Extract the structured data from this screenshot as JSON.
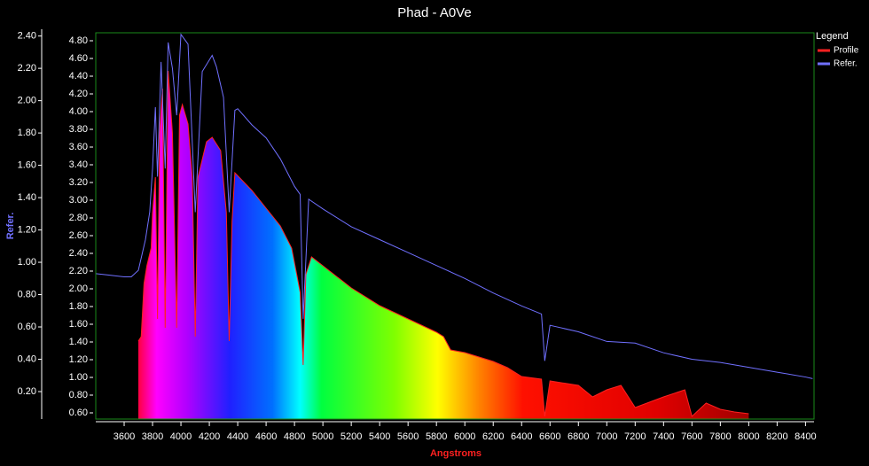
{
  "chart_data": {
    "type": "line",
    "title": "Phad - A0Ve",
    "xlabel": "Angstroms",
    "ylabel": "Refer.",
    "legend_title": "Legend",
    "legend": "top-right",
    "xlim": [
      3400,
      8460
    ],
    "ylim": [
      0.03,
      2.42
    ],
    "y2lim": [
      0.53,
      4.89
    ],
    "xticks": [
      3600,
      3800,
      4000,
      4200,
      4400,
      4600,
      4800,
      5000,
      5200,
      5400,
      5600,
      5800,
      6000,
      6200,
      6400,
      6600,
      6800,
      7000,
      7200,
      7400,
      7600,
      7800,
      8000,
      8200,
      8400
    ],
    "yticks": [
      {
        "value": 0.2,
        "label": "0.20"
      },
      {
        "value": 0.4,
        "label": "0.40"
      },
      {
        "value": 0.6,
        "label": "0.60"
      },
      {
        "value": 0.8,
        "label": "0.80"
      },
      {
        "value": 1.0,
        "label": "1.00"
      },
      {
        "value": 1.2,
        "label": "1.20"
      },
      {
        "value": 1.4,
        "label": "1.40"
      },
      {
        "value": 1.6,
        "label": "1.60"
      },
      {
        "value": 1.8,
        "label": "1.80"
      },
      {
        "value": 2.0,
        "label": "2.00"
      },
      {
        "value": 2.2,
        "label": "2.20"
      },
      {
        "value": 2.4,
        "label": "2.40"
      }
    ],
    "y2ticks": [
      {
        "value": 0.6,
        "label": "0.60"
      },
      {
        "value": 0.8,
        "label": "0.80"
      },
      {
        "value": 1.0,
        "label": "1.00"
      },
      {
        "value": 1.2,
        "label": "1.20"
      },
      {
        "value": 1.4,
        "label": "1.40"
      },
      {
        "value": 1.6,
        "label": "1.60"
      },
      {
        "value": 1.8,
        "label": "1.80"
      },
      {
        "value": 2.0,
        "label": "2.00"
      },
      {
        "value": 2.2,
        "label": "2.20"
      },
      {
        "value": 2.4,
        "label": "2.40"
      },
      {
        "value": 2.6,
        "label": "2.60"
      },
      {
        "value": 2.8,
        "label": "2.80"
      },
      {
        "value": 3.0,
        "label": "3.00"
      },
      {
        "value": 3.2,
        "label": "3.20"
      },
      {
        "value": 3.4,
        "label": "3.40"
      },
      {
        "value": 3.6,
        "label": "3.60"
      },
      {
        "value": 3.8,
        "label": "3.80"
      },
      {
        "value": 4.0,
        "label": "4.00"
      },
      {
        "value": 4.2,
        "label": "4.20"
      },
      {
        "value": 4.4,
        "label": "4.40"
      },
      {
        "value": 4.6,
        "label": "4.60"
      },
      {
        "value": 4.8,
        "label": "4.80"
      }
    ],
    "series": [
      {
        "name": "Profile",
        "color": "#ff2020",
        "axis": "y2",
        "x": [
          3700,
          3720,
          3740,
          3760,
          3790,
          3800,
          3820,
          3835,
          3850,
          3870,
          3889,
          3910,
          3940,
          3970,
          3990,
          4010,
          4050,
          4080,
          4101,
          4120,
          4180,
          4220,
          4280,
          4320,
          4340,
          4360,
          4380,
          4500,
          4600,
          4700,
          4780,
          4840,
          4861,
          4880,
          4920,
          5000,
          5200,
          5400,
          5600,
          5800,
          5850,
          5900,
          6000,
          6200,
          6300,
          6400,
          6540,
          6563,
          6600,
          6800,
          6900,
          7000,
          7100,
          7200,
          7400,
          7550,
          7600,
          7700,
          7800,
          7900,
          8000
        ],
        "values": [
          1.41,
          1.46,
          2.06,
          2.26,
          2.46,
          2.86,
          3.26,
          1.66,
          3.76,
          4.26,
          1.56,
          4.46,
          3.76,
          1.56,
          3.96,
          4.08,
          3.86,
          3.26,
          1.46,
          3.26,
          3.66,
          3.71,
          3.56,
          2.86,
          1.41,
          2.76,
          3.31,
          3.11,
          2.91,
          2.71,
          2.46,
          1.96,
          1.14,
          2.16,
          2.36,
          2.26,
          2.01,
          1.81,
          1.66,
          1.51,
          1.46,
          1.31,
          1.28,
          1.18,
          1.11,
          1.01,
          0.98,
          0.56,
          0.96,
          0.91,
          0.78,
          0.86,
          0.91,
          0.66,
          0.78,
          0.86,
          0.56,
          0.71,
          0.64,
          0.61,
          0.59
        ]
      },
      {
        "name": "Refer.",
        "color": "#7070ff",
        "axis": "y",
        "x": [
          3400,
          3500,
          3600,
          3650,
          3700,
          3750,
          3780,
          3800,
          3820,
          3835,
          3860,
          3889,
          3910,
          3940,
          3970,
          4000,
          4050,
          4101,
          4150,
          4220,
          4250,
          4300,
          4340,
          4380,
          4400,
          4500,
          4600,
          4700,
          4800,
          4840,
          4861,
          4900,
          5000,
          5200,
          5400,
          5600,
          5800,
          6000,
          6200,
          6400,
          6540,
          6563,
          6600,
          6800,
          7000,
          7200,
          7400,
          7600,
          7800,
          8000,
          8200,
          8400,
          8450
        ],
        "values": [
          0.93,
          0.92,
          0.91,
          0.91,
          0.95,
          1.14,
          1.31,
          1.58,
          1.96,
          1.53,
          2.24,
          1.58,
          2.36,
          2.2,
          1.91,
          2.41,
          2.35,
          1.31,
          2.18,
          2.28,
          2.21,
          2.02,
          1.31,
          1.94,
          1.95,
          1.85,
          1.77,
          1.64,
          1.47,
          1.42,
          0.65,
          1.39,
          1.33,
          1.22,
          1.14,
          1.06,
          0.98,
          0.9,
          0.81,
          0.73,
          0.68,
          0.39,
          0.61,
          0.57,
          0.51,
          0.5,
          0.44,
          0.4,
          0.38,
          0.35,
          0.32,
          0.29,
          0.28
        ]
      }
    ]
  }
}
